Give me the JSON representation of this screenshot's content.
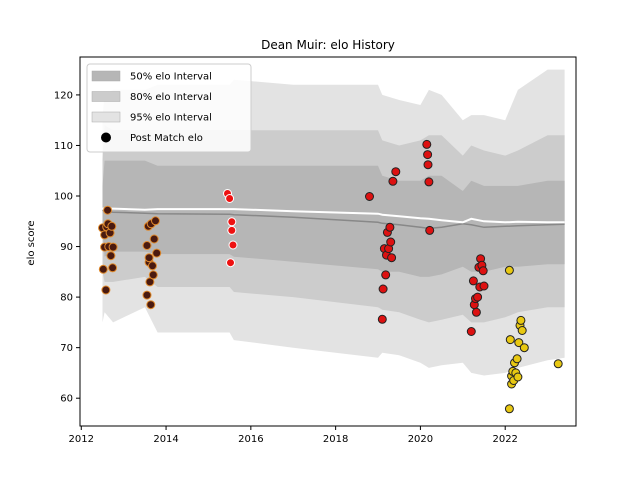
{
  "chart_data": {
    "type": "scatter",
    "title": "Dean Muir: elo History",
    "xlabel": "",
    "ylabel": "elo score",
    "xlim": [
      2011.97,
      2023.67
    ],
    "ylim": [
      54.5,
      127.5
    ],
    "x_ticks": [
      2012,
      2014,
      2016,
      2018,
      2020,
      2022
    ],
    "x_tick_labels": [
      "2012",
      "2014",
      "2016",
      "2018",
      "2020",
      "2022"
    ],
    "y_ticks": [
      60,
      70,
      80,
      90,
      100,
      110,
      120
    ],
    "y_tick_labels": [
      "60",
      "70",
      "80",
      "90",
      "100",
      "110",
      "120"
    ],
    "legend": {
      "placement": "top-left",
      "entries": [
        "50% elo Interval",
        "80% elo Interval",
        "95% elo Interval",
        "Post Match elo"
      ]
    },
    "colors": {
      "band95": "#e3e3e3",
      "band80": "#cccccc",
      "band50": "#b6b6b6",
      "mean_line": "#ffffff",
      "median_line": "#888888"
    },
    "bands": {
      "x": [
        2012.5,
        2012.55,
        2012.75,
        2013.5,
        2013.8,
        2015.5,
        2015.6,
        2017.0,
        2019.0,
        2019.1,
        2019.5,
        2020.0,
        2020.2,
        2020.5,
        2021.0,
        2021.2,
        2021.5,
        2022.0,
        2022.3,
        2023.0,
        2023.4
      ],
      "p95_high": [
        116,
        120,
        121,
        121,
        122,
        122,
        123,
        122,
        122,
        120,
        119,
        118,
        121,
        120,
        115,
        116,
        116,
        115,
        121,
        125,
        125
      ],
      "p95_low": [
        75,
        77,
        75,
        78,
        73,
        73,
        71.5,
        70,
        68,
        69,
        68.5,
        67,
        66,
        66.5,
        67,
        65,
        64.5,
        65,
        66,
        67.5,
        68
      ],
      "p80_high": [
        107,
        114,
        113,
        113,
        113,
        113,
        113,
        113,
        113,
        111,
        110,
        111,
        112,
        112,
        108,
        110,
        109,
        108,
        109,
        112,
        112
      ],
      "p80_low": [
        85,
        83,
        83,
        84,
        82,
        82,
        81,
        80,
        78,
        77.5,
        77,
        75.5,
        75,
        75.5,
        76.5,
        75,
        75,
        76,
        77,
        78,
        78
      ],
      "p50_high": [
        102,
        107,
        107,
        107,
        106,
        106,
        106,
        106,
        106,
        104,
        103,
        103,
        104,
        104,
        101,
        103,
        102,
        102,
        102,
        103,
        103
      ],
      "p50_low": [
        93,
        88,
        89,
        89,
        88.5,
        88.5,
        88,
        87,
        85.5,
        85,
        85,
        84,
        84,
        84.5,
        86,
        85,
        85,
        86,
        86,
        86.5,
        86.5
      ],
      "mean": [
        97.5,
        97.5,
        97.5,
        97.3,
        97.4,
        97.4,
        97.4,
        97.0,
        96.5,
        96.3,
        96.0,
        95.6,
        95.5,
        95.2,
        94.8,
        95.5,
        95.0,
        94.8,
        94.9,
        94.8,
        94.8
      ],
      "median": [
        97.2,
        97.0,
        96.8,
        96.6,
        96.5,
        96.4,
        96.3,
        95.8,
        94.8,
        94.6,
        94.3,
        93.8,
        93.6,
        93.8,
        94.5,
        94.3,
        93.8,
        94.0,
        94.1,
        94.3,
        94.4
      ]
    },
    "series": [
      {
        "name": "Post Match elo",
        "color": "#4a1a10",
        "edge": "#e08a2c",
        "x": [
          2012.5,
          2012.52,
          2012.55,
          2012.55,
          2012.58,
          2012.6,
          2012.62,
          2012.63,
          2012.65,
          2012.68,
          2012.7,
          2012.72,
          2012.74,
          2012.75,
          2013.55,
          2013.55,
          2013.58,
          2013.6,
          2013.6,
          2013.62,
          2013.64,
          2013.65,
          2013.68,
          2013.7,
          2013.72,
          2013.75,
          2013.78
        ],
        "y": [
          93.7,
          85.5,
          92.3,
          89.9,
          81.4,
          93.9,
          97.2,
          94.5,
          90.0,
          92.7,
          88.2,
          94.0,
          85.8,
          89.9,
          80.4,
          90.2,
          94.0,
          86.9,
          87.8,
          83.0,
          78.5,
          94.5,
          86.2,
          84.4,
          91.5,
          95.1,
          88.7
        ]
      },
      {
        "name": "",
        "color": "#ee1111",
        "edge": "#ffffff",
        "x": [
          2015.45,
          2015.5,
          2015.52,
          2015.55,
          2015.55,
          2015.58
        ],
        "y": [
          100.5,
          99.5,
          86.8,
          94.9,
          93.2,
          90.3
        ]
      },
      {
        "name": "",
        "color": "#dd1111",
        "edge": "#222222",
        "x": [
          2018.8,
          2019.1,
          2019.12,
          2019.15,
          2019.18,
          2019.2,
          2019.22,
          2019.25,
          2019.28,
          2019.3,
          2019.32,
          2019.35,
          2019.42,
          2020.15,
          2020.17,
          2020.18,
          2020.2,
          2020.22,
          2021.2,
          2021.25,
          2021.27,
          2021.3,
          2021.32,
          2021.35,
          2021.38,
          2021.4,
          2021.42,
          2021.45,
          2021.48,
          2021.5
        ],
        "y": [
          99.9,
          75.6,
          81.6,
          89.6,
          84.4,
          88.3,
          92.8,
          89.6,
          93.8,
          90.9,
          87.8,
          102.9,
          104.8,
          110.2,
          108.2,
          106.2,
          102.8,
          93.2,
          73.2,
          83.2,
          78.5,
          79.7,
          77.0,
          80.0,
          85.9,
          82.0,
          87.6,
          86.3,
          85.2,
          82.2
        ]
      },
      {
        "name": "",
        "color": "#e8c812",
        "edge": "#222222",
        "x": [
          2022.1,
          2022.1,
          2022.12,
          2022.15,
          2022.15,
          2022.18,
          2022.2,
          2022.22,
          2022.25,
          2022.28,
          2022.3,
          2022.32,
          2022.35,
          2022.37,
          2022.4,
          2022.45,
          2023.25
        ],
        "y": [
          85.3,
          57.9,
          71.6,
          64.4,
          62.8,
          65.3,
          63.5,
          67.0,
          65.0,
          67.8,
          64.2,
          71.0,
          74.4,
          75.4,
          73.4,
          70.0,
          66.8
        ]
      }
    ]
  }
}
